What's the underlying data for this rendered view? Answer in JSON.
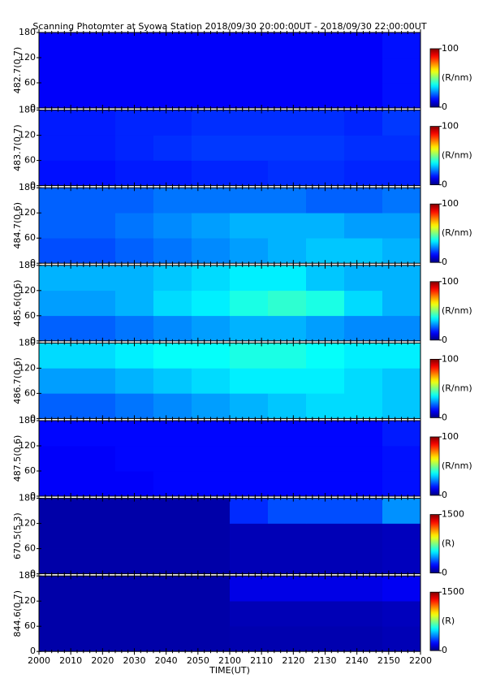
{
  "chart_data": [
    {
      "type": "heatmap",
      "title": "Scanning Photomter at Syowa Station 2018/09/30 20:00:00UT - 2018/09/30 22:00:00UT",
      "ylabel": "482.7(0.7)",
      "ylim": [
        0,
        180
      ],
      "yticks": [
        0,
        60,
        120,
        180
      ],
      "xlim": [
        "20:00",
        "22:00"
      ],
      "x_bins": [
        "20:00",
        "20:12",
        "20:24",
        "20:36",
        "20:48",
        "21:00",
        "21:12",
        "21:24",
        "21:36",
        "21:48",
        "22:00"
      ],
      "y_bins": [
        0,
        60,
        120,
        180
      ],
      "z": [
        [
          12,
          12,
          12,
          12,
          12,
          12,
          12,
          12,
          12,
          14
        ],
        [
          12,
          12,
          12,
          12,
          12,
          12,
          12,
          12,
          12,
          14
        ],
        [
          12,
          12,
          12,
          12,
          12,
          12,
          12,
          12,
          12,
          14
        ]
      ],
      "zlim": [
        0,
        100
      ],
      "zticks": [
        0,
        100
      ],
      "zlabel": "(R/nm)",
      "colormap": "jet"
    },
    {
      "type": "heatmap",
      "ylabel": "483.7(0.7)",
      "ylim": [
        0,
        180
      ],
      "yticks": [
        0,
        60,
        120,
        180
      ],
      "xlim": [
        "20:00",
        "22:00"
      ],
      "x_bins": [
        "20:00",
        "20:12",
        "20:24",
        "20:36",
        "20:48",
        "21:00",
        "21:12",
        "21:24",
        "21:36",
        "21:48",
        "22:00"
      ],
      "y_bins": [
        0,
        60,
        120,
        180
      ],
      "z": [
        [
          14,
          14,
          15,
          15,
          16,
          16,
          17,
          17,
          16,
          16
        ],
        [
          15,
          15,
          16,
          17,
          18,
          18,
          18,
          18,
          17,
          17
        ],
        [
          15,
          15,
          16,
          16,
          17,
          17,
          17,
          17,
          16,
          18
        ]
      ],
      "zlim": [
        0,
        100
      ],
      "zticks": [
        0,
        100
      ],
      "zlabel": "(R/nm)",
      "colormap": "jet"
    },
    {
      "type": "heatmap",
      "ylabel": "484.7(0.6)",
      "ylim": [
        0,
        180
      ],
      "yticks": [
        0,
        60,
        120,
        180
      ],
      "xlim": [
        "20:00",
        "22:00"
      ],
      "x_bins": [
        "20:00",
        "20:12",
        "20:24",
        "20:36",
        "20:48",
        "21:00",
        "21:12",
        "21:24",
        "21:36",
        "21:48",
        "22:00"
      ],
      "y_bins": [
        0,
        60,
        120,
        180
      ],
      "z": [
        [
          20,
          20,
          22,
          24,
          26,
          28,
          30,
          32,
          32,
          30
        ],
        [
          22,
          22,
          24,
          26,
          28,
          30,
          30,
          30,
          28,
          28
        ],
        [
          22,
          22,
          22,
          24,
          24,
          24,
          24,
          22,
          22,
          24
        ]
      ],
      "zlim": [
        0,
        100
      ],
      "zticks": [
        0,
        100
      ],
      "zlabel": "(R/nm)",
      "colormap": "jet"
    },
    {
      "type": "heatmap",
      "ylabel": "485.6(0.6)",
      "ylim": [
        0,
        180
      ],
      "yticks": [
        0,
        60,
        120,
        180
      ],
      "xlim": [
        "20:00",
        "22:00"
      ],
      "x_bins": [
        "20:00",
        "20:12",
        "20:24",
        "20:36",
        "20:48",
        "21:00",
        "21:12",
        "21:24",
        "21:36",
        "21:48",
        "22:00"
      ],
      "y_bins": [
        0,
        60,
        120,
        180
      ],
      "z": [
        [
          22,
          22,
          24,
          26,
          28,
          30,
          30,
          28,
          26,
          26
        ],
        [
          28,
          28,
          30,
          34,
          36,
          40,
          42,
          40,
          34,
          30
        ],
        [
          30,
          30,
          30,
          32,
          34,
          36,
          36,
          32,
          30,
          30
        ]
      ],
      "zlim": [
        0,
        100
      ],
      "zticks": [
        0,
        100
      ],
      "zlabel": "(R/nm)",
      "colormap": "jet"
    },
    {
      "type": "heatmap",
      "ylabel": "486.7(0.6)",
      "ylim": [
        0,
        180
      ],
      "yticks": [
        0,
        60,
        120,
        180
      ],
      "xlim": [
        "20:00",
        "22:00"
      ],
      "x_bins": [
        "20:00",
        "20:12",
        "20:24",
        "20:36",
        "20:48",
        "21:00",
        "21:12",
        "21:24",
        "21:36",
        "21:48",
        "22:00"
      ],
      "y_bins": [
        0,
        60,
        120,
        180
      ],
      "z": [
        [
          22,
          22,
          24,
          26,
          28,
          30,
          32,
          34,
          34,
          32
        ],
        [
          28,
          28,
          30,
          32,
          34,
          36,
          36,
          36,
          34,
          32
        ],
        [
          34,
          34,
          36,
          38,
          38,
          40,
          40,
          38,
          36,
          36
        ]
      ],
      "zlim": [
        0,
        100
      ],
      "zticks": [
        0,
        100
      ],
      "zlabel": "(R/nm)",
      "colormap": "jet"
    },
    {
      "type": "heatmap",
      "ylabel": "487.5(0.6)",
      "ylim": [
        0,
        180
      ],
      "yticks": [
        0,
        60,
        120,
        180
      ],
      "xlim": [
        "20:00",
        "22:00"
      ],
      "x_bins": [
        "20:00",
        "20:12",
        "20:24",
        "20:36",
        "20:48",
        "21:00",
        "21:12",
        "21:24",
        "21:36",
        "21:48",
        "22:00"
      ],
      "y_bins": [
        0,
        60,
        120,
        180
      ],
      "z": [
        [
          12,
          12,
          12,
          13,
          13,
          13,
          13,
          13,
          13,
          14
        ],
        [
          12,
          12,
          13,
          13,
          13,
          13,
          13,
          13,
          13,
          14
        ],
        [
          13,
          13,
          13,
          13,
          13,
          13,
          13,
          13,
          13,
          15
        ]
      ],
      "zlim": [
        0,
        100
      ],
      "zticks": [
        0,
        100
      ],
      "zlabel": "(R/nm)",
      "colormap": "jet"
    },
    {
      "type": "heatmap",
      "ylabel": "670.5(5.3)",
      "ylim": [
        0,
        180
      ],
      "yticks": [
        0,
        60,
        120,
        180
      ],
      "xlim": [
        "20:00",
        "22:00"
      ],
      "x_bins": [
        "20:00",
        "20:12",
        "20:24",
        "20:36",
        "20:48",
        "21:00",
        "21:12",
        "21:24",
        "21:36",
        "21:48",
        "22:00"
      ],
      "y_bins": [
        0,
        60,
        120,
        180
      ],
      "z": [
        [
          60,
          60,
          60,
          60,
          60,
          80,
          80,
          80,
          80,
          90
        ],
        [
          60,
          60,
          60,
          60,
          60,
          80,
          80,
          80,
          80,
          90
        ],
        [
          60,
          60,
          60,
          60,
          60,
          250,
          300,
          300,
          300,
          400
        ]
      ],
      "zlim": [
        0,
        1500
      ],
      "zticks": [
        0,
        1500
      ],
      "zlabel": "(R)",
      "colormap": "jet"
    },
    {
      "type": "heatmap",
      "ylabel": "844.6(0.7)",
      "ylim": [
        0,
        180
      ],
      "yticks": [
        0,
        60,
        120,
        180
      ],
      "xlim": [
        "20:00",
        "22:00"
      ],
      "x_bins": [
        "20:00",
        "20:12",
        "20:24",
        "20:36",
        "20:48",
        "21:00",
        "21:12",
        "21:24",
        "21:36",
        "21:48",
        "22:00"
      ],
      "y_bins": [
        0,
        60,
        120,
        180
      ],
      "z": [
        [
          60,
          60,
          60,
          60,
          60,
          70,
          70,
          70,
          70,
          80
        ],
        [
          60,
          60,
          60,
          60,
          60,
          80,
          80,
          80,
          80,
          90
        ],
        [
          60,
          60,
          60,
          60,
          60,
          150,
          150,
          150,
          150,
          170
        ]
      ],
      "zlim": [
        0,
        1500
      ],
      "zticks": [
        0,
        1500
      ],
      "zlabel": "(R)",
      "colormap": "jet",
      "xlabel": "TIME(UT)",
      "xticks": [
        {
          "value": "20:00",
          "label": "2000"
        },
        {
          "value": "20:10",
          "label": "2010"
        },
        {
          "value": "20:20",
          "label": "2020"
        },
        {
          "value": "20:30",
          "label": "2030"
        },
        {
          "value": "20:40",
          "label": "2040"
        },
        {
          "value": "20:50",
          "label": "2050"
        },
        {
          "value": "21:00",
          "label": "2100"
        },
        {
          "value": "21:10",
          "label": "2110"
        },
        {
          "value": "21:20",
          "label": "2120"
        },
        {
          "value": "21:30",
          "label": "2130"
        },
        {
          "value": "21:40",
          "label": "2140"
        },
        {
          "value": "21:50",
          "label": "2150"
        },
        {
          "value": "22:00",
          "label": "2200"
        }
      ]
    }
  ]
}
